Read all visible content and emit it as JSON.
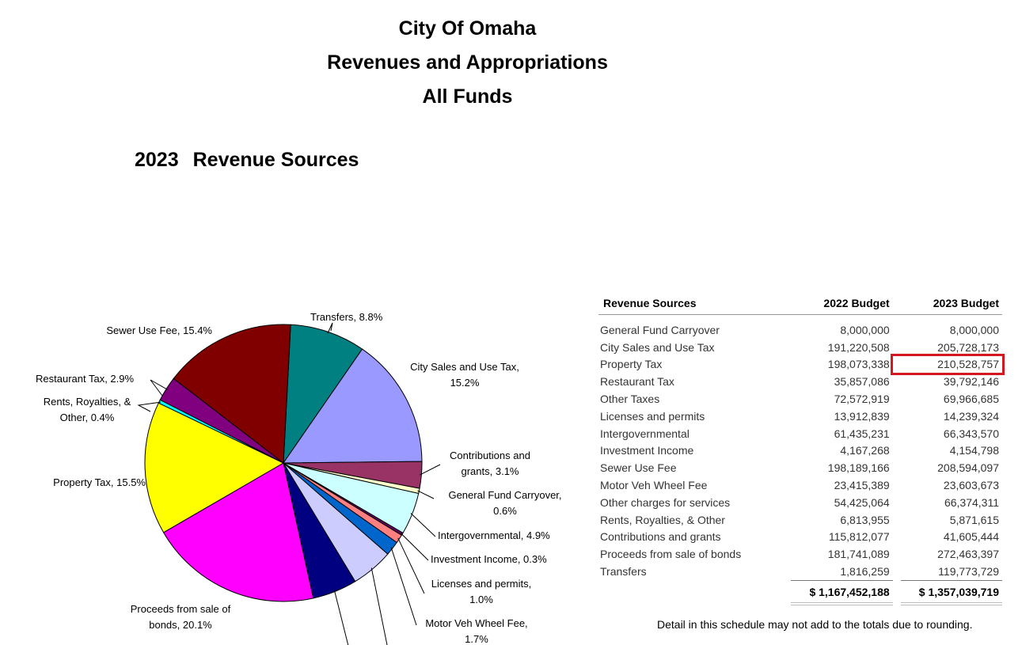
{
  "header": {
    "line1": "City Of Omaha",
    "line2": "Revenues and Appropriations",
    "line3": "All Funds"
  },
  "chart_heading": {
    "year": "2023",
    "label": "Revenue Sources"
  },
  "chart_data": {
    "type": "pie",
    "title": "2023 Revenue Sources",
    "slices": [
      {
        "name": "Transfers",
        "value": 8.8,
        "label": "Transfers, 8.8%",
        "color": "#008080"
      },
      {
        "name": "City Sales and Use Tax",
        "value": 15.2,
        "label": "City Sales and Use Tax, 15.2%",
        "color": "#9999FF"
      },
      {
        "name": "Contributions and grants",
        "value": 3.1,
        "label": "Contributions and grants, 3.1%",
        "color": "#993366"
      },
      {
        "name": "General Fund Carryover",
        "value": 0.6,
        "label": "General Fund Carryover, 0.6%",
        "color": "#FFFFCC"
      },
      {
        "name": "Intergovernmental",
        "value": 4.9,
        "label": "Intergovernmental, 4.9%",
        "color": "#CCFFFF"
      },
      {
        "name": "Investment Income",
        "value": 0.3,
        "label": "Investment Income, 0.3%",
        "color": "#660066"
      },
      {
        "name": "Licenses and permits",
        "value": 1.0,
        "label": "Licenses and permits, 1.0%",
        "color": "#FF8080"
      },
      {
        "name": "Motor Veh Wheel Fee",
        "value": 1.7,
        "label": "Motor Veh Wheel Fee, 1.7%",
        "color": "#0066CC"
      },
      {
        "name": "Other charges for services",
        "value": 4.9,
        "label": "",
        "color": "#CCCCFF"
      },
      {
        "name": "Other Taxes",
        "value": 5.2,
        "label": "",
        "color": "#000080"
      },
      {
        "name": "Proceeds from sale of bonds",
        "value": 20.1,
        "label": "Proceeds from sale of bonds, 20.1%",
        "color": "#FF00FF"
      },
      {
        "name": "Property Tax",
        "value": 15.5,
        "label": "Property Tax, 15.5%",
        "color": "#FFFF00"
      },
      {
        "name": "Rents, Royalties, & Other",
        "value": 0.4,
        "label": "Rents, Royalties, & Other, 0.4%",
        "color": "#00FFFF"
      },
      {
        "name": "Restaurant Tax",
        "value": 2.9,
        "label": "Restaurant Tax, 2.9%",
        "color": "#800080"
      },
      {
        "name": "Sewer Use Fee",
        "value": 15.4,
        "label": "Sewer Use Fee, 15.4%",
        "color": "#800000"
      }
    ]
  },
  "table": {
    "headers": {
      "name": "Revenue Sources",
      "b2022": "2022 Budget",
      "b2023": "2023 Budget"
    },
    "rows": [
      {
        "name": "General Fund Carryover",
        "b2022": "8,000,000",
        "b2023": "8,000,000"
      },
      {
        "name": "City Sales and Use Tax",
        "b2022": "191,220,508",
        "b2023": "205,728,173"
      },
      {
        "name": "Property Tax",
        "b2022": "198,073,338",
        "b2023": "210,528,757"
      },
      {
        "name": "Restaurant Tax",
        "b2022": "35,857,086",
        "b2023": "39,792,146"
      },
      {
        "name": "Other Taxes",
        "b2022": "72,572,919",
        "b2023": "69,966,685"
      },
      {
        "name": "Licenses and permits",
        "b2022": "13,912,839",
        "b2023": "14,239,324"
      },
      {
        "name": "Intergovernmental",
        "b2022": "61,435,231",
        "b2023": "66,343,570"
      },
      {
        "name": "Investment Income",
        "b2022": "4,167,268",
        "b2023": "4,154,798"
      },
      {
        "name": "Sewer Use Fee",
        "b2022": "198,189,166",
        "b2023": "208,594,097"
      },
      {
        "name": "Motor Veh Wheel Fee",
        "b2022": "23,415,389",
        "b2023": "23,603,673"
      },
      {
        "name": "Other charges for services",
        "b2022": "54,425,064",
        "b2023": "66,374,311"
      },
      {
        "name": "Rents, Royalties, & Other",
        "b2022": "6,813,955",
        "b2023": "5,871,615"
      },
      {
        "name": "Contributions and grants",
        "b2022": "115,812,077",
        "b2023": "41,605,444"
      },
      {
        "name": "Proceeds from sale of bonds",
        "b2022": "181,741,089",
        "b2023": "272,463,397"
      },
      {
        "name": "Transfers",
        "b2022": "1,816,259",
        "b2023": "119,773,729"
      }
    ],
    "totals": {
      "b2022": "$ 1,167,452,188",
      "b2023": "$ 1,357,039,719"
    },
    "highlight_color": "#D4181F"
  },
  "note": "Detail in this schedule may not add to the totals due to rounding."
}
